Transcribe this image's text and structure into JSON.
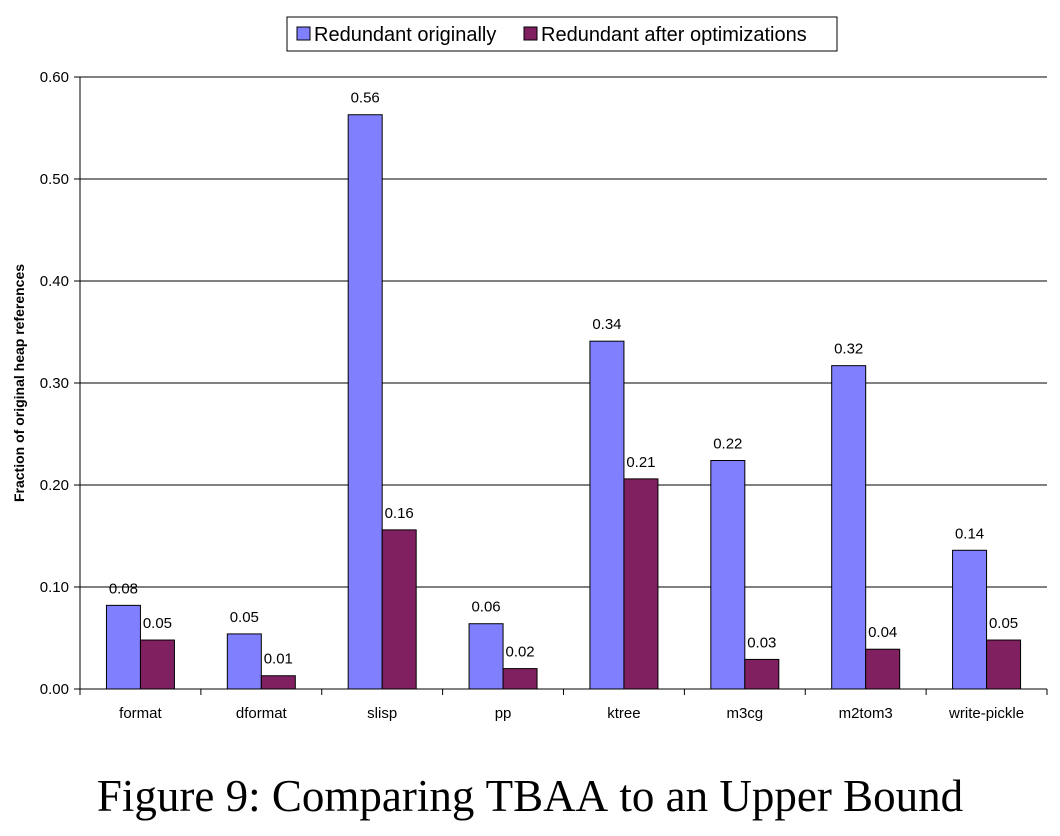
{
  "chart_data": {
    "type": "bar",
    "title": "",
    "xlabel": "",
    "ylabel": "Fraction of original heap references",
    "ylim": [
      0,
      0.6
    ],
    "yticks": [
      "0.00",
      "0.10",
      "0.20",
      "0.30",
      "0.40",
      "0.50",
      "0.60"
    ],
    "grid": true,
    "legend_position": "top-center",
    "categories": [
      "format",
      "dformat",
      "slisp",
      "pp",
      "ktree",
      "m3cg",
      "m2tom3",
      "write-pickle"
    ],
    "series": [
      {
        "name": "Redundant originally",
        "color": "#8080FF",
        "values": [
          0.082,
          0.054,
          0.563,
          0.064,
          0.341,
          0.224,
          0.317,
          0.136
        ],
        "labels": [
          "0.08",
          "0.05",
          "0.56",
          "0.06",
          "0.34",
          "0.22",
          "0.32",
          "0.14"
        ]
      },
      {
        "name": "Redundant after optimizations",
        "color": "#802060",
        "values": [
          0.048,
          0.013,
          0.156,
          0.02,
          0.206,
          0.029,
          0.039,
          0.048
        ],
        "labels": [
          "0.05",
          "0.01",
          "0.16",
          "0.02",
          "0.21",
          "0.03",
          "0.04",
          "0.05"
        ]
      }
    ]
  },
  "caption": {
    "prefix": "Figure 9: Comparing ",
    "acronym": "TBAA",
    "suffix": " to an Upper Bound"
  }
}
